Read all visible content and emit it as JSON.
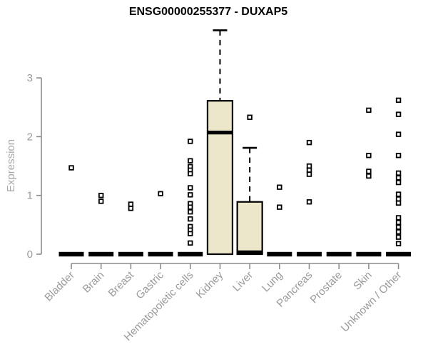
{
  "chart_data": {
    "type": "boxplot",
    "title": "ENSG00000255377 - DUXAP5",
    "ylabel": "Expression",
    "xlabel": "",
    "yticks": [
      0,
      1,
      2,
      3
    ],
    "ylim": [
      0,
      3.9
    ],
    "grid": false,
    "legend": "none",
    "categories": [
      "Bladder",
      "Brain",
      "Breast",
      "Gastric",
      "Hematopoietic cells",
      "Kidney",
      "Liver",
      "Lung",
      "Pancreas",
      "Prostate",
      "Skin",
      "Unknown / Other"
    ],
    "series": [
      {
        "category": "Bladder",
        "q1": 0,
        "median": 0,
        "q3": 0,
        "whisker_low": 0,
        "whisker_high": 0,
        "outliers": [
          1.47
        ]
      },
      {
        "category": "Brain",
        "q1": 0,
        "median": 0,
        "q3": 0,
        "whisker_low": 0,
        "whisker_high": 0,
        "outliers": [
          1.0,
          0.9
        ]
      },
      {
        "category": "Breast",
        "q1": 0,
        "median": 0,
        "q3": 0,
        "whisker_low": 0,
        "whisker_high": 0,
        "outliers": [
          0.85,
          0.78
        ]
      },
      {
        "category": "Gastric",
        "q1": 0,
        "median": 0,
        "q3": 0,
        "whisker_low": 0,
        "whisker_high": 0,
        "outliers": [
          1.03
        ]
      },
      {
        "category": "Hematopoietic cells",
        "q1": 0,
        "median": 0,
        "q3": 0,
        "whisker_low": 0,
        "whisker_high": 0,
        "outliers": [
          1.92,
          1.59,
          1.49,
          1.43,
          1.37,
          1.13,
          1.01,
          0.86,
          0.8,
          0.72,
          0.6,
          0.47,
          0.41,
          0.35,
          0.19
        ]
      },
      {
        "category": "Kidney",
        "q1": 0,
        "median": 2.07,
        "q3": 2.61,
        "whisker_low": 0,
        "whisker_high": 3.81,
        "outliers": []
      },
      {
        "category": "Liver",
        "q1": 0,
        "median": 0,
        "q3": 0.89,
        "whisker_low": 0,
        "whisker_high": 1.81,
        "outliers": [
          2.33
        ]
      },
      {
        "category": "Lung",
        "q1": 0,
        "median": 0,
        "q3": 0,
        "whisker_low": 0,
        "whisker_high": 0,
        "outliers": [
          1.14,
          0.8
        ]
      },
      {
        "category": "Pancreas",
        "q1": 0,
        "median": 0,
        "q3": 0,
        "whisker_low": 0,
        "whisker_high": 0,
        "outliers": [
          1.9,
          1.5,
          1.43,
          1.36,
          0.89
        ]
      },
      {
        "category": "Prostate",
        "q1": 0,
        "median": 0,
        "q3": 0,
        "whisker_low": 0,
        "whisker_high": 0,
        "outliers": []
      },
      {
        "category": "Skin",
        "q1": 0,
        "median": 0,
        "q3": 0,
        "whisker_low": 0,
        "whisker_high": 0,
        "outliers": [
          2.45,
          1.68,
          1.41,
          1.33
        ]
      },
      {
        "category": "Unknown / Other",
        "q1": 0,
        "median": 0,
        "q3": 0,
        "whisker_low": 0,
        "whisker_high": 0,
        "outliers": [
          2.62,
          2.38,
          2.04,
          1.68,
          1.38,
          1.3,
          1.22,
          1.02,
          0.94,
          0.87,
          0.62,
          0.54,
          0.46,
          0.38,
          0.29,
          0.18
        ]
      }
    ],
    "colors": {
      "box_fill": "#ECE7CB",
      "box_stroke": "#000000",
      "median": "#000000",
      "outlier_stroke": "#000000",
      "outlier_fill": "#FFFFFF",
      "axis": "#8C8C8C",
      "tick_labels": "#9A9A9A",
      "axis_title": "#A8A8A8",
      "title": "#000000",
      "background": "#FFFFFF"
    }
  }
}
